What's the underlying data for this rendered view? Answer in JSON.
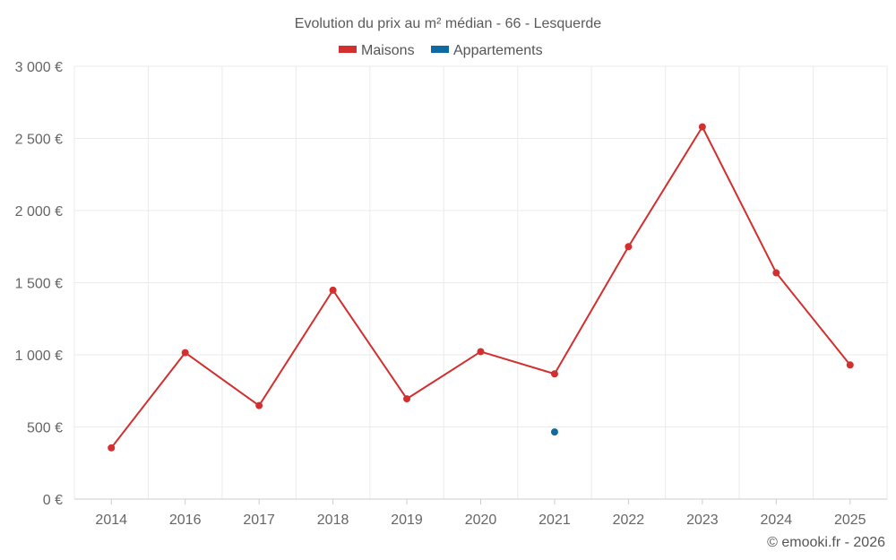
{
  "chart_data": {
    "type": "line",
    "title": "Evolution du prix au m² médian - 66 - Lesquerde",
    "categories": [
      "2014",
      "2016",
      "2017",
      "2018",
      "2019",
      "2020",
      "2021",
      "2022",
      "2023",
      "2024",
      "2025"
    ],
    "series": [
      {
        "name": "Maisons",
        "color": "#d32f2f",
        "values": [
          355,
          1015,
          648,
          1448,
          695,
          1022,
          868,
          1750,
          2580,
          1568,
          930
        ]
      },
      {
        "name": "Appartements",
        "color": "#0e6aa0",
        "values": [
          null,
          null,
          null,
          null,
          null,
          null,
          465,
          null,
          null,
          null,
          null
        ]
      }
    ],
    "ylim": [
      0,
      3000
    ],
    "yticks": [
      0,
      500,
      1000,
      1500,
      2000,
      2500,
      3000
    ],
    "ytick_labels": [
      "0 €",
      "500 €",
      "1 000 €",
      "1 500 €",
      "2 000 €",
      "2 500 €",
      "3 000 €"
    ],
    "xlabel": "",
    "ylabel": "",
    "legend_position": "top-center",
    "grid": true
  },
  "footer": {
    "credit": "© emooki.fr - 2026"
  }
}
